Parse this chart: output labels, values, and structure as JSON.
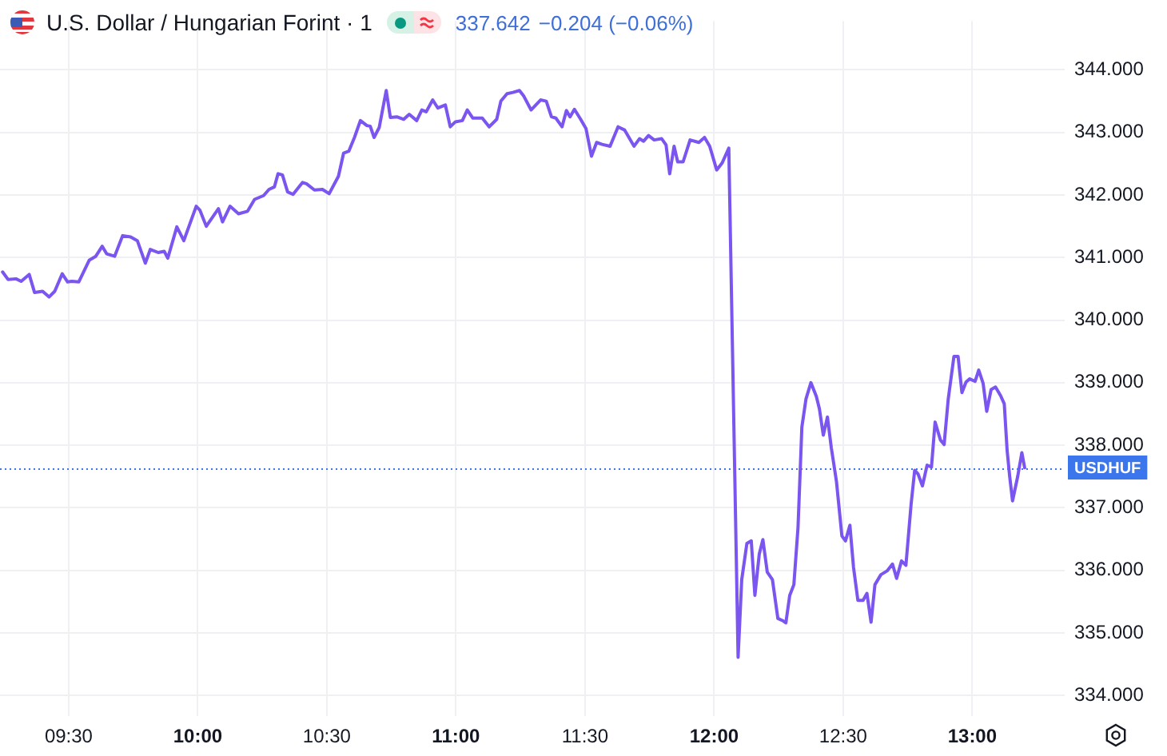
{
  "chart_data": {
    "type": "line",
    "title": "U.S. Dollar / Hungarian Forint · 1",
    "annotations": [
      "337.642",
      "−0.204 (−0.06%)"
    ],
    "x": [
      9.244,
      9.265,
      9.296,
      9.316,
      9.347,
      9.368,
      9.399,
      9.424,
      9.446,
      9.475,
      9.496,
      9.512,
      9.539,
      9.58,
      9.605,
      9.63,
      9.647,
      9.678,
      9.709,
      9.74,
      9.766,
      9.797,
      9.816,
      9.847,
      9.87,
      9.884,
      9.919,
      9.946,
      9.994,
      10.008,
      10.033,
      10.08,
      10.096,
      10.125,
      10.158,
      10.193,
      10.22,
      10.255,
      10.276,
      10.297,
      10.311,
      10.328,
      10.348,
      10.369,
      10.406,
      10.421,
      10.452,
      10.483,
      10.509,
      10.545,
      10.565,
      10.585,
      10.607,
      10.63,
      10.655,
      10.668,
      10.683,
      10.703,
      10.73,
      10.746,
      10.771,
      10.798,
      10.819,
      10.848,
      10.868,
      10.885,
      10.91,
      10.93,
      10.959,
      10.978,
      10.998,
      11.025,
      11.044,
      11.065,
      11.102,
      11.129,
      11.158,
      11.174,
      11.198,
      11.221,
      11.246,
      11.263,
      11.291,
      11.328,
      11.35,
      11.37,
      11.387,
      11.411,
      11.428,
      11.442,
      11.459,
      11.483,
      11.504,
      11.525,
      11.545,
      11.566,
      11.597,
      11.628,
      11.653,
      11.69,
      11.711,
      11.727,
      11.746,
      11.768,
      11.797,
      11.814,
      11.828,
      11.845,
      11.859,
      11.88,
      11.907,
      11.941,
      11.963,
      11.983,
      12.01,
      12.031,
      12.057,
      12.093,
      12.107,
      12.127,
      12.144,
      12.158,
      12.175,
      12.189,
      12.206,
      12.226,
      12.247,
      12.268,
      12.278,
      12.293,
      12.309,
      12.325,
      12.34,
      12.356,
      12.375,
      12.396,
      12.408,
      12.423,
      12.439,
      12.454,
      12.474,
      12.495,
      12.509,
      12.526,
      12.54,
      12.557,
      12.577,
      12.592,
      12.608,
      12.623,
      12.646,
      12.67,
      12.691,
      12.707,
      12.726,
      12.743,
      12.763,
      12.777,
      12.79,
      12.807,
      12.825,
      12.842,
      12.856,
      12.877,
      12.891,
      12.907,
      12.929,
      12.945,
      12.96,
      12.976,
      12.99,
      13.011,
      13.025,
      13.042,
      13.056,
      13.073,
      13.09,
      13.11,
      13.124,
      13.135,
      13.145,
      13.156,
      13.176,
      13.192,
      13.203
    ],
    "values": [
      340.77,
      340.65,
      340.66,
      340.62,
      340.73,
      340.44,
      340.46,
      340.37,
      340.46,
      340.74,
      340.61,
      340.62,
      340.61,
      340.96,
      341.02,
      341.18,
      341.06,
      341.02,
      341.35,
      341.33,
      341.27,
      340.91,
      341.13,
      341.08,
      341.1,
      340.99,
      341.49,
      341.27,
      341.82,
      341.76,
      341.5,
      341.78,
      341.57,
      341.82,
      341.7,
      341.74,
      341.93,
      341.99,
      342.09,
      342.13,
      342.34,
      342.32,
      342.05,
      342.01,
      342.2,
      342.18,
      342.08,
      342.09,
      342.02,
      342.3,
      342.67,
      342.7,
      342.92,
      343.19,
      343.11,
      343.1,
      342.92,
      343.08,
      343.67,
      343.24,
      343.25,
      343.21,
      343.29,
      343.19,
      343.36,
      343.33,
      343.52,
      343.39,
      343.44,
      343.09,
      343.17,
      343.19,
      343.36,
      343.23,
      343.23,
      343.09,
      343.21,
      343.5,
      343.62,
      343.64,
      343.67,
      343.58,
      343.36,
      343.52,
      343.5,
      343.25,
      343.23,
      343.09,
      343.35,
      343.25,
      343.37,
      343.21,
      343.06,
      342.62,
      342.84,
      342.81,
      342.78,
      343.09,
      343.04,
      342.78,
      342.9,
      342.86,
      342.95,
      342.88,
      342.9,
      342.8,
      342.34,
      342.78,
      342.53,
      342.53,
      342.88,
      342.84,
      342.92,
      342.78,
      342.4,
      342.51,
      342.75,
      334.61,
      335.85,
      336.43,
      336.47,
      335.6,
      336.26,
      336.49,
      335.97,
      335.85,
      335.23,
      335.19,
      335.16,
      335.6,
      335.77,
      336.68,
      338.29,
      338.74,
      339.0,
      338.78,
      338.58,
      338.16,
      338.45,
      337.96,
      337.42,
      336.55,
      336.47,
      336.72,
      336.05,
      335.52,
      335.52,
      335.63,
      335.17,
      335.77,
      335.93,
      335.99,
      336.1,
      335.87,
      336.15,
      336.08,
      337.05,
      337.6,
      337.54,
      337.35,
      337.68,
      337.65,
      338.37,
      338.08,
      338.01,
      338.74,
      339.42,
      339.42,
      338.84,
      339.01,
      339.06,
      339.02,
      339.2,
      338.99,
      338.54,
      338.89,
      338.93,
      338.79,
      338.66,
      337.92,
      337.5,
      337.11,
      337.5,
      337.88,
      337.64
    ],
    "color": "#7b55f0",
    "xlim": [
      9.234,
      13.358
    ],
    "xticks": [
      {
        "value": 9.5,
        "label": "09:30"
      },
      {
        "value": 10,
        "label": "10:00"
      },
      {
        "value": 10.5,
        "label": "10:30"
      },
      {
        "value": 11,
        "label": "11:00"
      },
      {
        "value": 11.5,
        "label": "11:30"
      },
      {
        "value": 12,
        "label": "12:00"
      },
      {
        "value": 12.5,
        "label": "12:30"
      },
      {
        "value": 13,
        "label": "13:00"
      }
    ],
    "ylim": [
      333.67,
      344.78
    ],
    "yticks": [
      {
        "value": 334,
        "label": "334.000"
      },
      {
        "value": 335,
        "label": "335.000"
      },
      {
        "value": 336,
        "label": "336.000"
      },
      {
        "value": 337,
        "label": "337.000"
      },
      {
        "value": 338,
        "label": "338.000"
      },
      {
        "value": 339,
        "label": "339.000"
      },
      {
        "value": 340,
        "label": "340.000"
      },
      {
        "value": 341,
        "label": "341.000"
      },
      {
        "value": 342,
        "label": "342.000"
      },
      {
        "value": 343,
        "label": "343.000"
      },
      {
        "value": 344,
        "label": "344.000"
      }
    ],
    "grid": true,
    "legend": false,
    "marker": "none",
    "line_style": "solid",
    "ref_lines": [
      {
        "axis": "y",
        "value": 337.642,
        "label": "USDHUF",
        "color": "#3b76ec",
        "line_style": "dotted"
      }
    ]
  }
}
